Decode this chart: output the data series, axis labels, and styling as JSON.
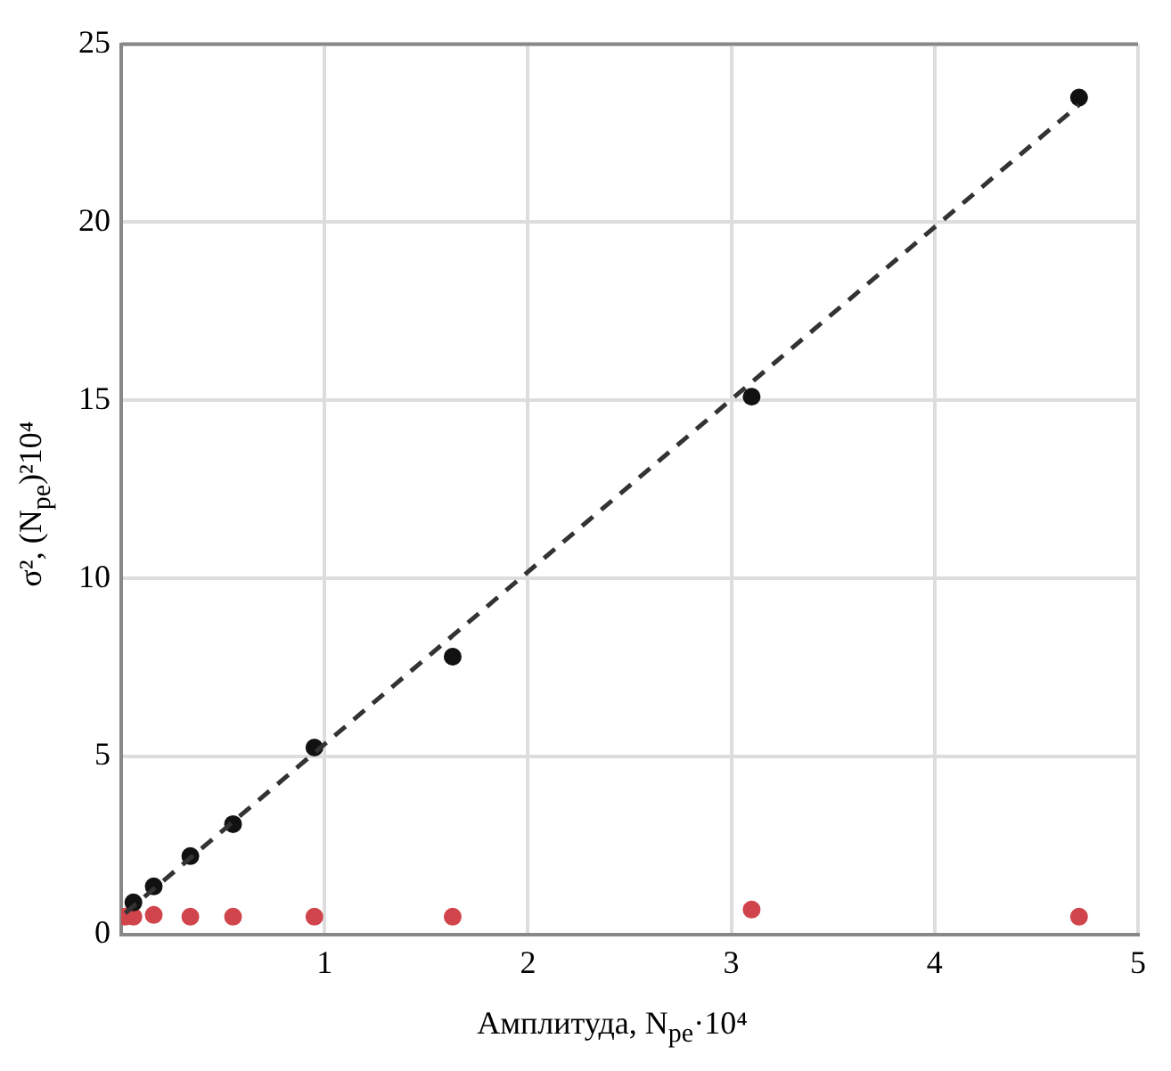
{
  "chart_data": {
    "type": "scatter",
    "xlabel": "Амплитуда, N$_{pe}$·10⁴",
    "ylabel": "σ², (N$_{pe}$)²10⁴",
    "xlim": [
      0,
      5
    ],
    "xticks": [
      1,
      2,
      3,
      4,
      5
    ],
    "ylim": [
      0,
      25
    ],
    "yticks": [
      0,
      5,
      10,
      15,
      20,
      25
    ],
    "grid": true,
    "marker": "circle",
    "series": [
      {
        "type": "line",
        "color": "#333333",
        "line_style": "dashed",
        "marker": "none",
        "x": [
          0.02,
          4.71
        ],
        "values": [
          0.6,
          23.3
        ]
      },
      {
        "color": "#111111",
        "x": [
          0.06,
          0.16,
          0.34,
          0.55,
          0.95,
          1.63,
          3.1,
          4.71
        ],
        "values": [
          0.9,
          1.35,
          2.2,
          3.1,
          5.25,
          7.8,
          15.1,
          23.5
        ]
      },
      {
        "color": "#d0454c",
        "x": [
          0.02,
          0.06,
          0.16,
          0.34,
          0.55,
          0.95,
          1.63,
          3.1,
          4.71
        ],
        "values": [
          0.5,
          0.5,
          0.55,
          0.5,
          0.5,
          0.5,
          0.5,
          0.7,
          0.5
        ]
      }
    ]
  }
}
